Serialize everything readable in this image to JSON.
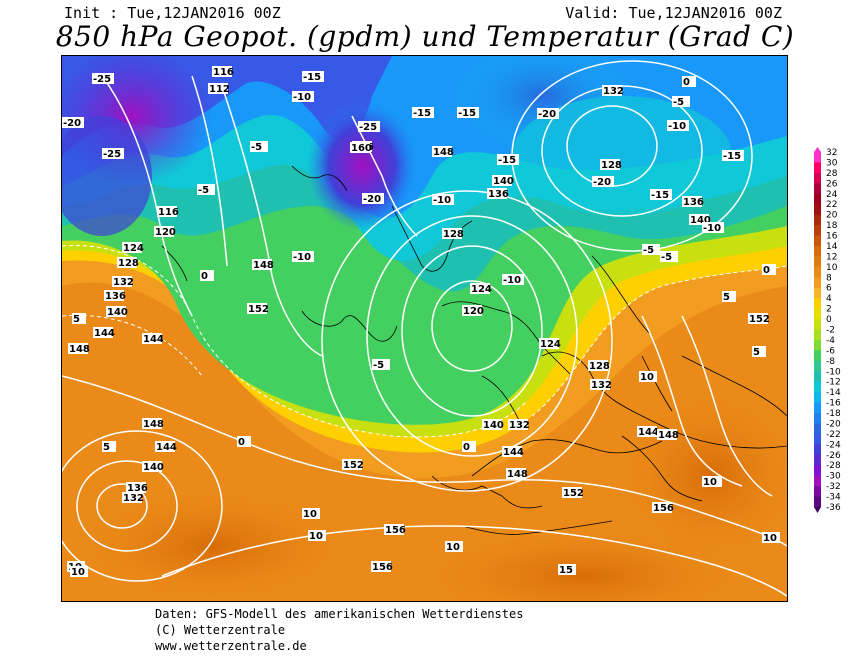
{
  "header": {
    "init": "Init : Tue,12JAN2016 00Z",
    "valid": "Valid: Tue,12JAN2016 00Z",
    "title": "850 hPa Geopot. (gpdm) und Temperatur (Grad C)"
  },
  "legend": {
    "ticks": [
      "32",
      "30",
      "28",
      "26",
      "24",
      "22",
      "20",
      "18",
      "16",
      "14",
      "12",
      "10",
      "8",
      "6",
      "4",
      "2",
      "0",
      "-2",
      "-4",
      "-6",
      "-8",
      "-10",
      "-12",
      "-14",
      "-16",
      "-18",
      "-20",
      "-22",
      "-24",
      "-26",
      "-28",
      "-30",
      "-32",
      "-34",
      "-36"
    ],
    "colors": [
      "#ff33cc",
      "#ff0066",
      "#d80055",
      "#b0003a",
      "#a00020",
      "#a01010",
      "#a82808",
      "#b84008",
      "#c85808",
      "#d86c08",
      "#e07c10",
      "#ea8a18",
      "#f29c20",
      "#f8b428",
      "#ffd000",
      "#e8e000",
      "#c8e010",
      "#a8e020",
      "#7cdc30",
      "#44d060",
      "#30c890",
      "#20c0b0",
      "#10c8d8",
      "#10b8f0",
      "#1898f8",
      "#2080f0",
      "#2868e0",
      "#3858e8",
      "#4040d8",
      "#5c28d0",
      "#8410d8",
      "#a010c0",
      "#7a0aa0",
      "#5a0880",
      "#400060"
    ],
    "colors_note_unused": ""
  },
  "map": {
    "geopot_labels": [
      "116",
      "112",
      "120",
      "124",
      "128",
      "132",
      "136",
      "140",
      "148",
      "152",
      "156",
      "160",
      "144",
      "120",
      "124",
      "128",
      "132",
      "136",
      "140",
      "144",
      "148",
      "152",
      "156",
      "148",
      "136",
      "140",
      "128",
      "124",
      "120",
      "132"
    ],
    "temp_labels": [
      "-25",
      "-20",
      "-25",
      "-5",
      "-15",
      "-10",
      "-10",
      "-5",
      "0",
      "-15",
      "-20",
      "-25",
      "-15",
      "-10",
      "-5",
      "0",
      "5",
      "10",
      "15",
      "-15",
      "-20",
      "-10",
      "-5",
      "0",
      "5",
      "10",
      "-5",
      "0",
      "5",
      "10",
      "15",
      "-10",
      "-15",
      "-5",
      "0",
      "5",
      "10",
      "-20",
      "-15",
      "-10"
    ]
  },
  "footer": {
    "line1": "Daten: GFS-Modell des amerikanischen Wetterdienstes",
    "line2": "(C) Wetterzentrale",
    "line3": "www.wetterzentrale.de"
  }
}
